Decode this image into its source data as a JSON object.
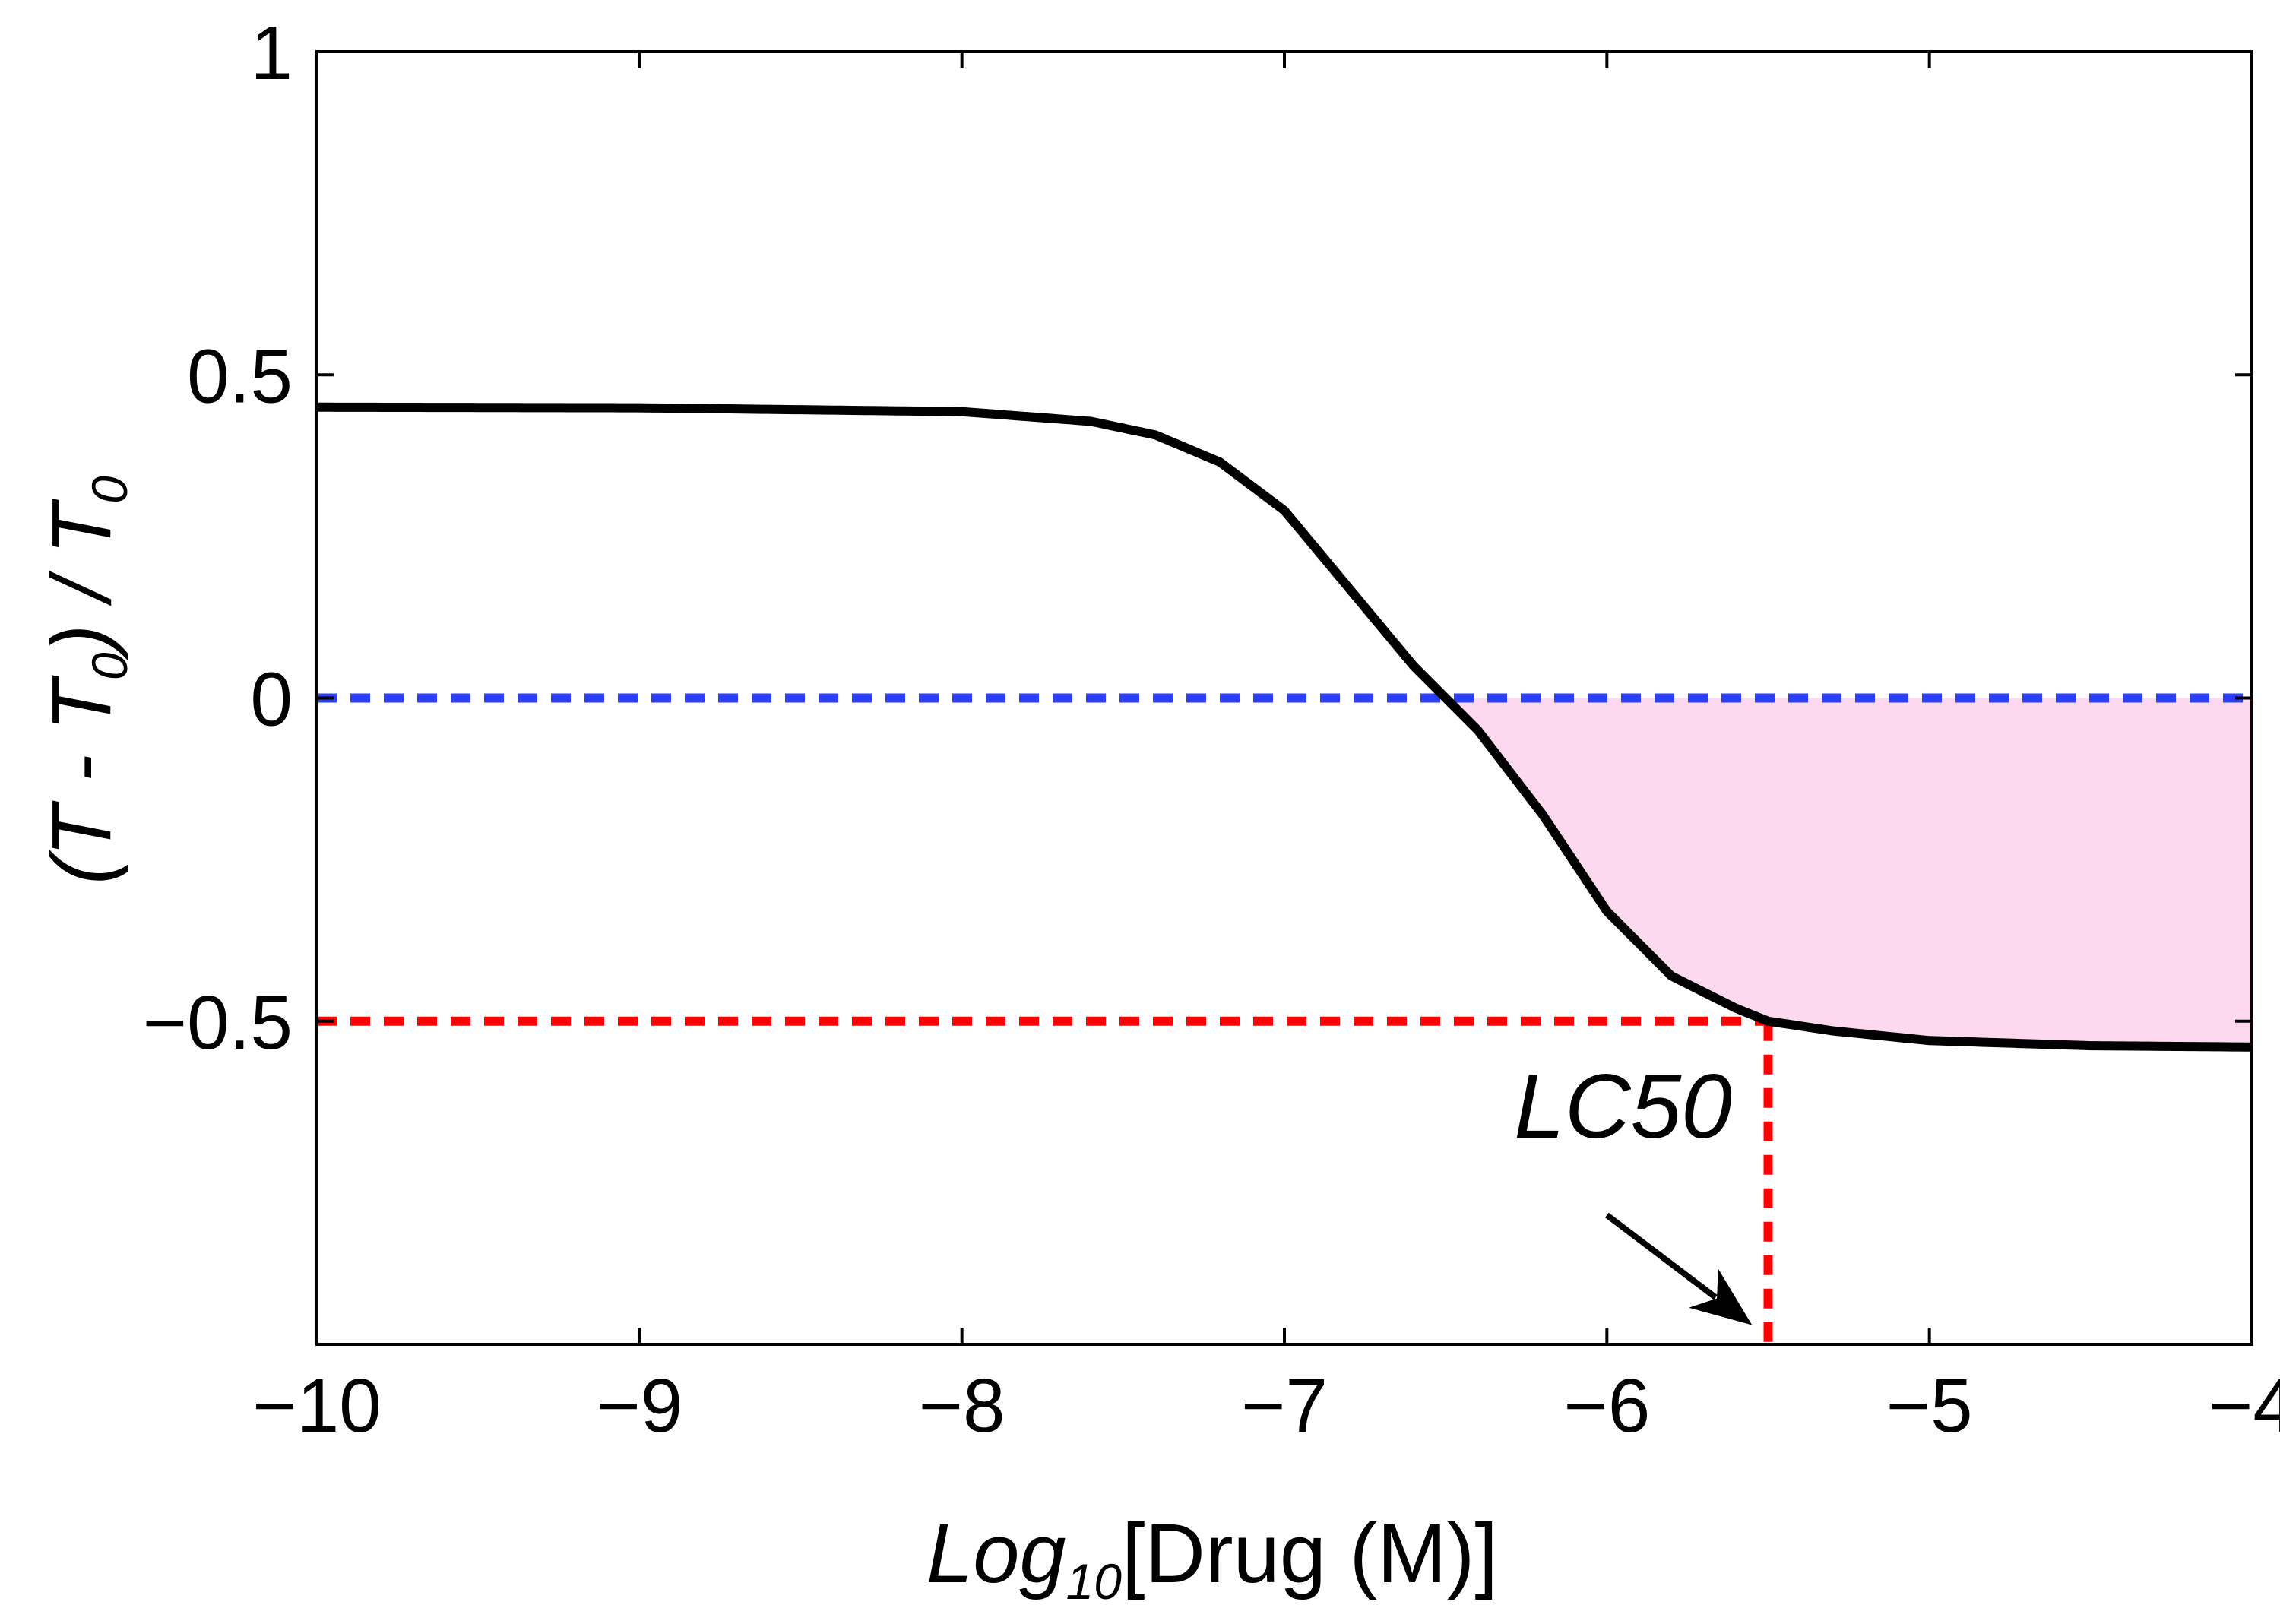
{
  "chart_data": {
    "type": "line",
    "title": "",
    "xlabel": {
      "main": "Log",
      "subscript": "10",
      "rest": "[Drug (M)]"
    },
    "ylabel": {
      "part1": "(T - T",
      "sub1": "0",
      "part2": ") / T",
      "sub2": "0"
    },
    "xlim": [
      -10,
      -4
    ],
    "ylim": [
      -1,
      1
    ],
    "xticks": [
      -10,
      -9,
      -8,
      -7,
      -6,
      -5,
      -4
    ],
    "xtick_labels": [
      "−10",
      "−9",
      "−8",
      "−7",
      "−6",
      "−5",
      "−4"
    ],
    "yticks": [
      -0.5,
      0,
      0.5,
      1
    ],
    "ytick_labels": [
      "−0.5",
      "0",
      "0.5",
      "1"
    ],
    "grid": false,
    "curve": {
      "x": [
        -10,
        -9,
        -8,
        -7.6,
        -7.4,
        -7.2,
        -7.0,
        -6.8,
        -6.6,
        -6.5,
        -6.4,
        -6.2,
        -6.0,
        -5.8,
        -5.6,
        -5.5,
        -5.3,
        -5.0,
        -4.5,
        -4.0
      ],
      "y": [
        0.45,
        0.449,
        0.443,
        0.428,
        0.407,
        0.365,
        0.29,
        0.17,
        0.05,
        0.0,
        -0.05,
        -0.18,
        -0.33,
        -0.43,
        -0.48,
        -0.5,
        -0.515,
        -0.53,
        -0.538,
        -0.54
      ],
      "color": "#000000"
    },
    "reference_lines": [
      {
        "type": "horizontal",
        "y": 0,
        "x_from": -10,
        "x_to": -4,
        "color": "#2a3ef5",
        "style": "dashed"
      },
      {
        "type": "horizontal",
        "y": -0.5,
        "x_from": -10,
        "x_to": -5.5,
        "color": "#ff0000",
        "style": "dashed"
      },
      {
        "type": "vertical",
        "x": -5.5,
        "y_from": -0.5,
        "y_to": -1,
        "color": "#ff0000",
        "style": "dashed"
      }
    ],
    "shaded_region": {
      "between": "curve and y=0",
      "x_from": -6.5,
      "x_to": -4,
      "color": "#fcd9ef"
    },
    "annotations": [
      {
        "text": "LC50",
        "x": -5.95,
        "y": -0.68,
        "arrow_from": [
          -6.0,
          -0.8
        ],
        "arrow_to": [
          -5.55,
          -0.97
        ]
      }
    ]
  }
}
